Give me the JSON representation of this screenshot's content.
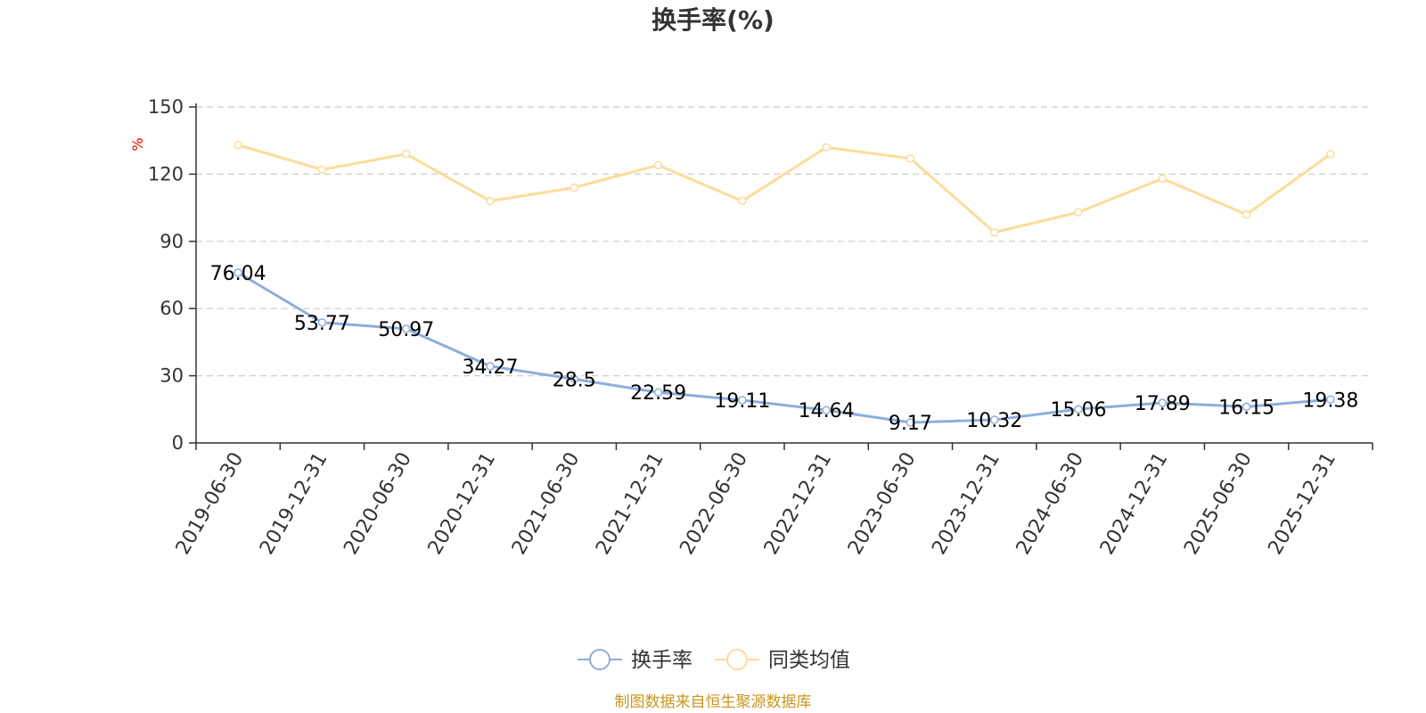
{
  "chart_data": {
    "type": "line",
    "title": "换手率(%)",
    "ylabel": "%",
    "xlabel": "",
    "ylim": [
      0,
      150
    ],
    "yticks": [
      0,
      30,
      60,
      90,
      120,
      150
    ],
    "grid": true,
    "legend_position": "bottom-center",
    "categories": [
      "2019-06-30",
      "2019-12-31",
      "2020-06-30",
      "2020-12-31",
      "2021-06-30",
      "2021-12-31",
      "2022-06-30",
      "2022-12-31",
      "2023-06-30",
      "2023-12-31",
      "2024-06-30",
      "2024-12-31",
      "2025-06-30",
      "2025-12-31"
    ],
    "series": [
      {
        "name": "换手率",
        "color": "#8eaedb",
        "show_labels": true,
        "labels": [
          "76.04",
          "53.77",
          "50.97",
          "34.27",
          "28.5",
          "22.59",
          "19.11",
          "14.64",
          "9.17",
          "10.32",
          "15.06",
          "17.89",
          "16.15",
          "19.38"
        ],
        "values": [
          76.04,
          53.77,
          50.97,
          34.27,
          28.5,
          22.59,
          19.11,
          14.64,
          9.17,
          10.32,
          15.06,
          17.89,
          16.15,
          19.38
        ]
      },
      {
        "name": "同类均值",
        "color": "#fddc9a",
        "show_labels": false,
        "values": [
          133,
          122,
          129,
          108,
          114,
          124,
          108,
          132,
          127,
          94,
          103,
          118,
          102,
          129
        ]
      }
    ],
    "source": "制图数据来自恒生聚源数据库"
  }
}
